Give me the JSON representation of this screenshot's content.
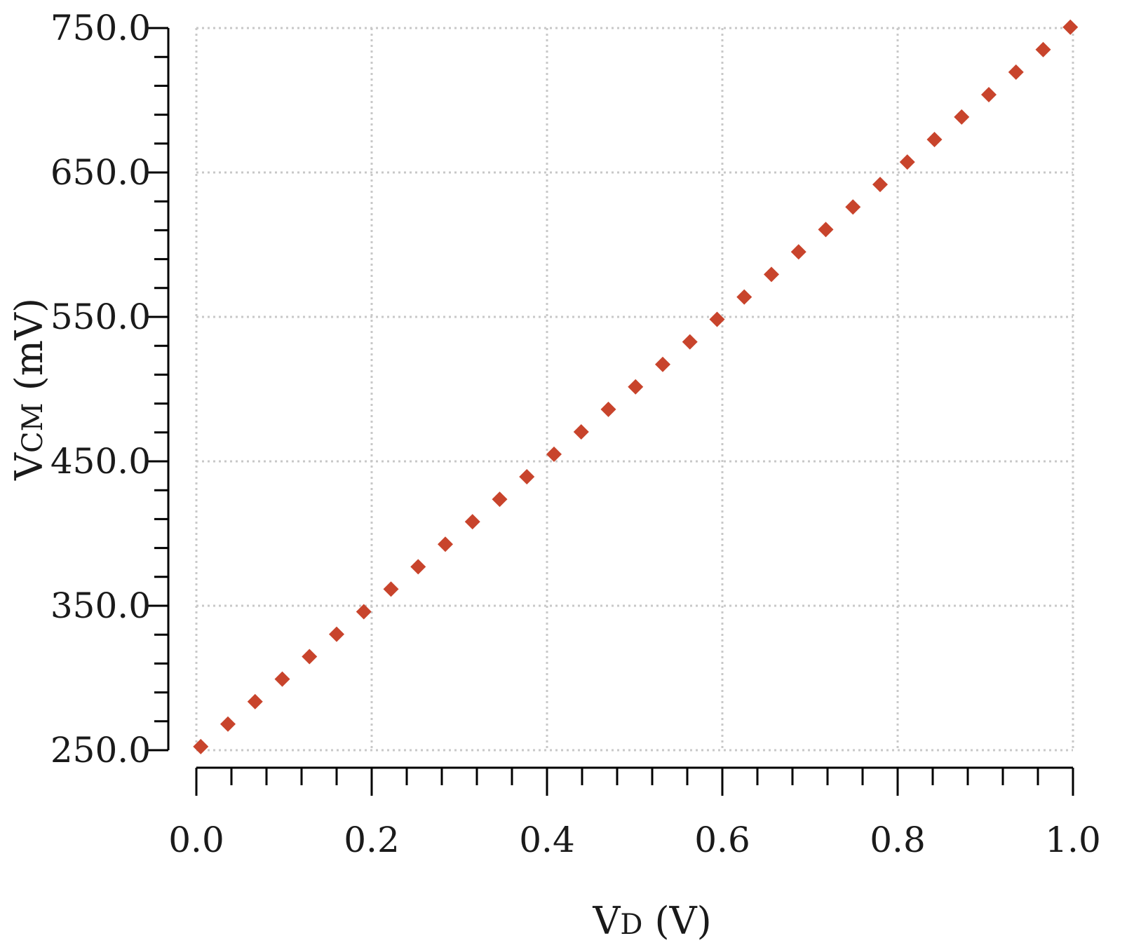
{
  "chart_data": {
    "type": "scatter",
    "xlabel": {
      "main": "V",
      "sub": "D",
      "unit": " (V)"
    },
    "ylabel": {
      "main": "V",
      "sub": "CM",
      "unit": " (mV)"
    },
    "xlim": [
      0.0,
      1.0
    ],
    "ylim": [
      250.0,
      750.0
    ],
    "x_ticks": [
      0.0,
      0.2,
      0.4,
      0.6,
      0.8,
      1.0
    ],
    "x_tick_labels": [
      "0.0",
      "0.2",
      "0.4",
      "0.6",
      "0.8",
      "1.0"
    ],
    "x_minor_step": 0.04,
    "y_ticks": [
      250.0,
      350.0,
      450.0,
      550.0,
      650.0,
      750.0
    ],
    "y_tick_labels": [
      "250.0",
      "350.0",
      "450.0",
      "550.0",
      "650.0",
      "750.0"
    ],
    "y_minor_step": 20,
    "grid": true,
    "marker": "diamond",
    "color": "#c8442c",
    "series": [
      {
        "x": [
          0.005,
          0.036,
          0.067,
          0.098,
          0.129,
          0.16,
          0.191,
          0.222,
          0.253,
          0.284,
          0.315,
          0.346,
          0.377,
          0.408,
          0.439,
          0.47,
          0.501,
          0.532,
          0.563,
          0.594,
          0.625,
          0.656,
          0.687,
          0.718,
          0.749,
          0.78,
          0.811,
          0.842,
          0.873,
          0.904,
          0.935,
          0.966,
          0.997
        ],
        "y": [
          252.5,
          268.1,
          283.6,
          299.2,
          314.8,
          330.3,
          345.9,
          361.5,
          377.0,
          392.6,
          408.2,
          423.7,
          439.3,
          454.9,
          470.4,
          486.0,
          501.6,
          517.1,
          532.7,
          548.3,
          563.8,
          579.4,
          595.0,
          610.5,
          626.1,
          641.7,
          657.2,
          672.8,
          688.4,
          703.9,
          719.5,
          735.1,
          750.6
        ]
      }
    ]
  }
}
